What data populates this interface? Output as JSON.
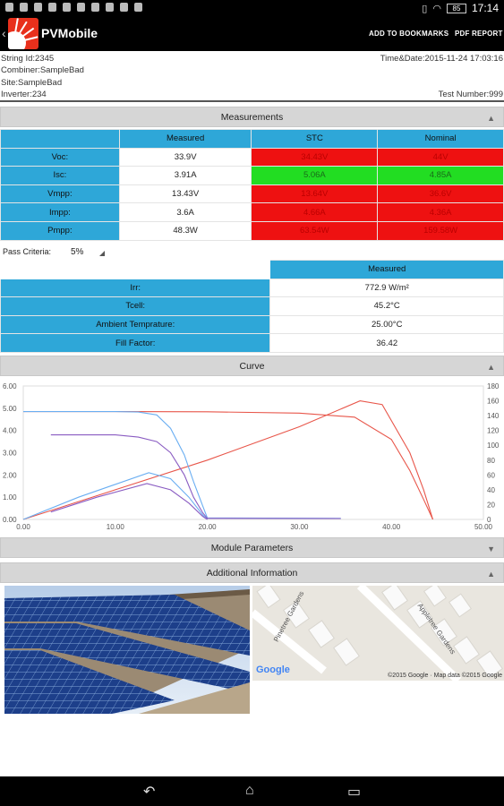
{
  "status_bar": {
    "time": "17:14",
    "battery": "85"
  },
  "app_bar": {
    "title": "PVMobile",
    "add_bookmarks": "ADD TO BOOKMARKS",
    "pdf_report": "PDF REPORT"
  },
  "info": {
    "string_id": "String Id:2345",
    "combiner": "Combiner:SampleBad",
    "site": "Site:SampleBad",
    "inverter": "Inverter:234",
    "time_date": "Time&Date:2015-11-24 17:03:16",
    "test_number": "Test Number:999"
  },
  "measurements": {
    "header": "Measurements",
    "columns": [
      "Measured",
      "STC",
      "Nominal"
    ],
    "rows": [
      {
        "label": "Voc:",
        "measured": "33.9V",
        "stc": "34.43V",
        "nominal": "44V",
        "stc_status": "red",
        "nominal_status": "red"
      },
      {
        "label": "Isc:",
        "measured": "3.91A",
        "stc": "5.06A",
        "nominal": "4.85A",
        "stc_status": "green",
        "nominal_status": "green"
      },
      {
        "label": "Vmpp:",
        "measured": "13.43V",
        "stc": "13.64V",
        "nominal": "36.6V",
        "stc_status": "red",
        "nominal_status": "red"
      },
      {
        "label": "Impp:",
        "measured": "3.6A",
        "stc": "4.66A",
        "nominal": "4.36A",
        "stc_status": "red",
        "nominal_status": "red"
      },
      {
        "label": "Pmpp:",
        "measured": "48.3W",
        "stc": "63.54W",
        "nominal": "159.58W",
        "stc_status": "red",
        "nominal_status": "red"
      }
    ]
  },
  "pass_criteria": {
    "label": "Pass Criteria:",
    "value": "5%"
  },
  "conditions": {
    "column": "Measured",
    "rows": [
      {
        "label": "Irr:",
        "value": "772.9 W/m²"
      },
      {
        "label": "Tcell:",
        "value": "45.2°C"
      },
      {
        "label": "Ambient Temprature:",
        "value": "25.00°C"
      },
      {
        "label": "Fill Factor:",
        "value": "36.42"
      }
    ]
  },
  "curve": {
    "header": "Curve"
  },
  "module_parameters": {
    "header": "Module Parameters"
  },
  "additional_info": {
    "header": "Additional Information"
  },
  "map": {
    "google": "Google",
    "attribution": "©2015 Google · Map data ©2015 Google",
    "street1": "Pinetree Gardens",
    "street2": "Appletree Gardens"
  },
  "colors": {
    "accent_blue": "#2ea7d8",
    "fail_red": "#ee1111",
    "pass_green": "#22dd22"
  },
  "chart_data": {
    "type": "line",
    "x_ticks": [
      "0.00",
      "10.00",
      "20.00",
      "30.00",
      "40.00",
      "50.00"
    ],
    "y_left_ticks": [
      "0.00",
      "1.00",
      "2.00",
      "3.00",
      "4.00",
      "5.00",
      "6.00"
    ],
    "y_right_ticks": [
      "0",
      "20",
      "40",
      "60",
      "80",
      "100",
      "120",
      "140",
      "160",
      "180"
    ],
    "xlim": [
      0,
      50
    ],
    "ylim_left": [
      0,
      6
    ],
    "ylim_right": [
      0,
      180
    ],
    "series": [
      {
        "axis": "left",
        "color": "#e8564a",
        "x": [
          0,
          10,
          20,
          30,
          36,
          40,
          42,
          43.5,
          44.5
        ],
        "y": [
          4.85,
          4.85,
          4.84,
          4.78,
          4.6,
          3.6,
          2.2,
          0.9,
          0
        ]
      },
      {
        "axis": "right",
        "color": "#e8564a",
        "x": [
          0,
          10,
          20,
          30,
          36.6,
          39,
          42,
          43.5,
          44.5
        ],
        "y": [
          0,
          40,
          80,
          125,
          160,
          155,
          90,
          40,
          0
        ]
      },
      {
        "axis": "left",
        "color": "#6aaef2",
        "x": [
          0,
          10,
          12.5,
          14.5,
          16,
          17.5,
          18.5,
          19.5,
          20,
          34.5
        ],
        "y": [
          4.85,
          4.85,
          4.83,
          4.7,
          4.1,
          2.9,
          1.7,
          0.6,
          0.07,
          0.05
        ]
      },
      {
        "axis": "right",
        "color": "#6aaef2",
        "x": [
          0,
          6,
          13.64,
          16,
          18,
          19.5,
          20
        ],
        "y": [
          0,
          30,
          63,
          55,
          30,
          6,
          0
        ]
      },
      {
        "axis": "left",
        "color": "#8a5cc2",
        "x": [
          3,
          10,
          12.5,
          14.5,
          16,
          17.5,
          18.5,
          19.5,
          20,
          34.5
        ],
        "y": [
          3.8,
          3.8,
          3.7,
          3.5,
          3.0,
          2.0,
          1.0,
          0.3,
          0.05,
          0.04
        ]
      },
      {
        "axis": "right",
        "color": "#8a5cc2",
        "x": [
          3,
          8,
          13.43,
          16,
          18,
          19.5,
          20
        ],
        "y": [
          10,
          30,
          48.3,
          40,
          22,
          4,
          0
        ]
      }
    ]
  }
}
